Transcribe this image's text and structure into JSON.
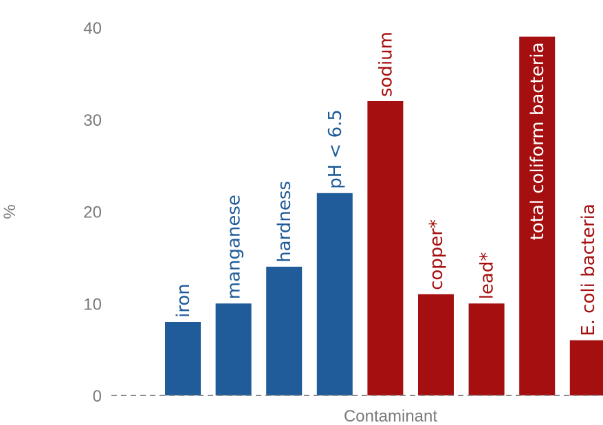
{
  "chart_data": {
    "type": "bar",
    "title": "",
    "xlabel": "Contaminant",
    "ylabel": "%",
    "ylim": [
      0,
      40
    ],
    "yticks": [
      0,
      10,
      20,
      30,
      40
    ],
    "grid": false,
    "baseline_style": "dashed",
    "categories": [
      "iron",
      "manganese",
      "hardness",
      "pH < 6.5",
      "sodium",
      "copper*",
      "lead*",
      "total coliform bacteria",
      "E. coli bacteria"
    ],
    "values": [
      8,
      10,
      14,
      22,
      32,
      11,
      10,
      39,
      6
    ],
    "colors": [
      "#1f5c99",
      "#1f5c99",
      "#1f5c99",
      "#1f5c99",
      "#a50f0f",
      "#a50f0f",
      "#a50f0f",
      "#a50f0f",
      "#a50f0f"
    ],
    "label_colors": [
      "#1f5c99",
      "#1f5c99",
      "#1f5c99",
      "#1f5c99",
      "#a50f0f",
      "#a50f0f",
      "#a50f0f",
      "#ffffff",
      "#a50f0f"
    ],
    "label_inside": [
      false,
      false,
      false,
      false,
      false,
      false,
      false,
      true,
      false
    ]
  }
}
